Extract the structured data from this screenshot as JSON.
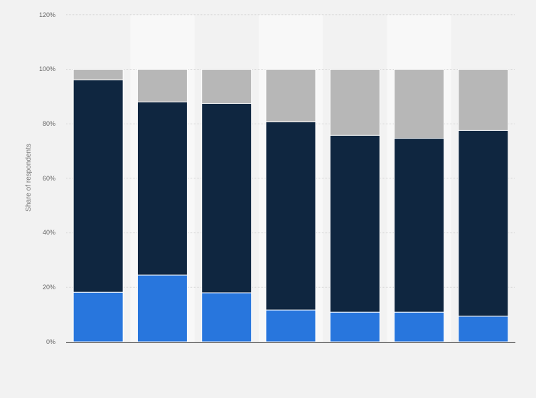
{
  "chart_data": {
    "type": "bar",
    "stacked": true,
    "ylabel": "Share of respondents",
    "ylim": [
      0,
      120
    ],
    "yticks": [
      "0%",
      "20%",
      "40%",
      "60%",
      "80%",
      "100%",
      "120%"
    ],
    "grid": true,
    "categories": [
      "",
      "",
      "",
      "",
      "",
      "",
      ""
    ],
    "series": [
      {
        "color": "#2876dd",
        "values": [
          18.2,
          24.5,
          18.0,
          11.7,
          10.9,
          10.9,
          9.4
        ]
      },
      {
        "color": "#0f2640",
        "values": [
          77.9,
          63.5,
          69.5,
          69.0,
          64.9,
          63.8,
          68.2
        ]
      },
      {
        "color": "#b7b7b7",
        "values": [
          3.9,
          12.0,
          12.5,
          19.3,
          24.2,
          25.3,
          22.4
        ]
      }
    ]
  }
}
